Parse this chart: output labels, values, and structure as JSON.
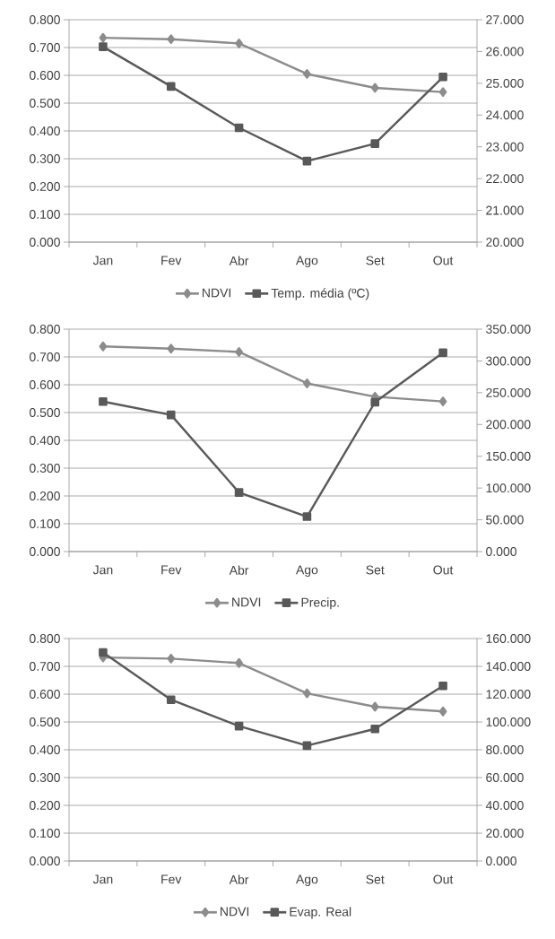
{
  "chart_data": [
    {
      "type": "line",
      "categories": [
        "Jan",
        "Fev",
        "Abr",
        "Ago",
        "Set",
        "Out"
      ],
      "series": [
        {
          "name": "NDVI",
          "color": "#8c8c8c",
          "marker": "diamond",
          "values": [
            0.735,
            0.73,
            0.715,
            0.605,
            0.555,
            0.54
          ]
        },
        {
          "name": "Temp. média (ºC)",
          "color": "#595959",
          "marker": "square",
          "axis": "y2",
          "values": [
            26.15,
            24.9,
            23.6,
            22.55,
            23.1,
            25.2
          ]
        }
      ],
      "ylim": [
        0,
        0.8
      ],
      "yticks": [
        {
          "value": 0,
          "label": "0.000"
        },
        {
          "value": 0.1,
          "label": "0.100"
        },
        {
          "value": 0.2,
          "label": "0.200"
        },
        {
          "value": 0.3,
          "label": "0.300"
        },
        {
          "value": 0.4,
          "label": "0.400"
        },
        {
          "value": 0.5,
          "label": "0.500"
        },
        {
          "value": 0.6,
          "label": "0.600"
        },
        {
          "value": 0.7,
          "label": "0.700"
        },
        {
          "value": 0.8,
          "label": "0.800"
        }
      ],
      "y2lim": [
        20,
        27
      ],
      "y2ticks": [
        {
          "value": 20,
          "label": "20.000"
        },
        {
          "value": 21,
          "label": "21.000"
        },
        {
          "value": 22,
          "label": "22.000"
        },
        {
          "value": 23,
          "label": "23.000"
        },
        {
          "value": 24,
          "label": "24.000"
        },
        {
          "value": 25,
          "label": "25.000"
        },
        {
          "value": 26,
          "label": "26.000"
        },
        {
          "value": 27,
          "label": "27.000"
        }
      ],
      "grid": "y",
      "legend": "bottom"
    },
    {
      "type": "line",
      "categories": [
        "Jan",
        "Fev",
        "Abr",
        "Ago",
        "Set",
        "Out"
      ],
      "series": [
        {
          "name": "NDVI",
          "color": "#8c8c8c",
          "marker": "diamond",
          "values": [
            0.738,
            0.73,
            0.718,
            0.605,
            0.557,
            0.54
          ]
        },
        {
          "name": "Precip.",
          "color": "#595959",
          "marker": "square",
          "axis": "y2",
          "values": [
            236,
            215,
            93,
            55,
            235,
            313
          ]
        }
      ],
      "ylim": [
        0,
        0.8
      ],
      "yticks": [
        {
          "value": 0,
          "label": "0.000"
        },
        {
          "value": 0.1,
          "label": "0.100"
        },
        {
          "value": 0.2,
          "label": "0.200"
        },
        {
          "value": 0.3,
          "label": "0.300"
        },
        {
          "value": 0.4,
          "label": "0.400"
        },
        {
          "value": 0.5,
          "label": "0.500"
        },
        {
          "value": 0.6,
          "label": "0.600"
        },
        {
          "value": 0.7,
          "label": "0.700"
        },
        {
          "value": 0.8,
          "label": "0.800"
        }
      ],
      "y2lim": [
        0,
        350
      ],
      "y2ticks": [
        {
          "value": 0,
          "label": "0.000"
        },
        {
          "value": 50,
          "label": "50.000"
        },
        {
          "value": 100,
          "label": "100.000"
        },
        {
          "value": 150,
          "label": "150.000"
        },
        {
          "value": 200,
          "label": "200.000"
        },
        {
          "value": 250,
          "label": "250.000"
        },
        {
          "value": 300,
          "label": "300.000"
        },
        {
          "value": 350,
          "label": "350.000"
        }
      ],
      "grid": "y",
      "legend": "bottom"
    },
    {
      "type": "line",
      "categories": [
        "Jan",
        "Fev",
        "Abr",
        "Ago",
        "Set",
        "Out"
      ],
      "series": [
        {
          "name": "NDVI",
          "color": "#8c8c8c",
          "marker": "diamond",
          "values": [
            0.732,
            0.728,
            0.712,
            0.603,
            0.555,
            0.538
          ]
        },
        {
          "name": "Evap. Real",
          "color": "#595959",
          "marker": "square",
          "axis": "y2",
          "values": [
            150,
            116,
            97,
            83,
            95,
            126
          ]
        }
      ],
      "ylim": [
        0,
        0.8
      ],
      "yticks": [
        {
          "value": 0,
          "label": "0.000"
        },
        {
          "value": 0.1,
          "label": "0.100"
        },
        {
          "value": 0.2,
          "label": "0.200"
        },
        {
          "value": 0.3,
          "label": "0.300"
        },
        {
          "value": 0.4,
          "label": "0.400"
        },
        {
          "value": 0.5,
          "label": "0.500"
        },
        {
          "value": 0.6,
          "label": "0.600"
        },
        {
          "value": 0.7,
          "label": "0.700"
        },
        {
          "value": 0.8,
          "label": "0.800"
        }
      ],
      "y2lim": [
        0,
        160
      ],
      "y2ticks": [
        {
          "value": 0,
          "label": "0.000"
        },
        {
          "value": 20,
          "label": "20.000"
        },
        {
          "value": 40,
          "label": "40.000"
        },
        {
          "value": 60,
          "label": "60.000"
        },
        {
          "value": 80,
          "label": "80.000"
        },
        {
          "value": 100,
          "label": "100.000"
        },
        {
          "value": 120,
          "label": "120.000"
        },
        {
          "value": 140,
          "label": "140.000"
        },
        {
          "value": 160,
          "label": "160.000"
        }
      ],
      "grid": "y",
      "legend": "bottom"
    }
  ]
}
